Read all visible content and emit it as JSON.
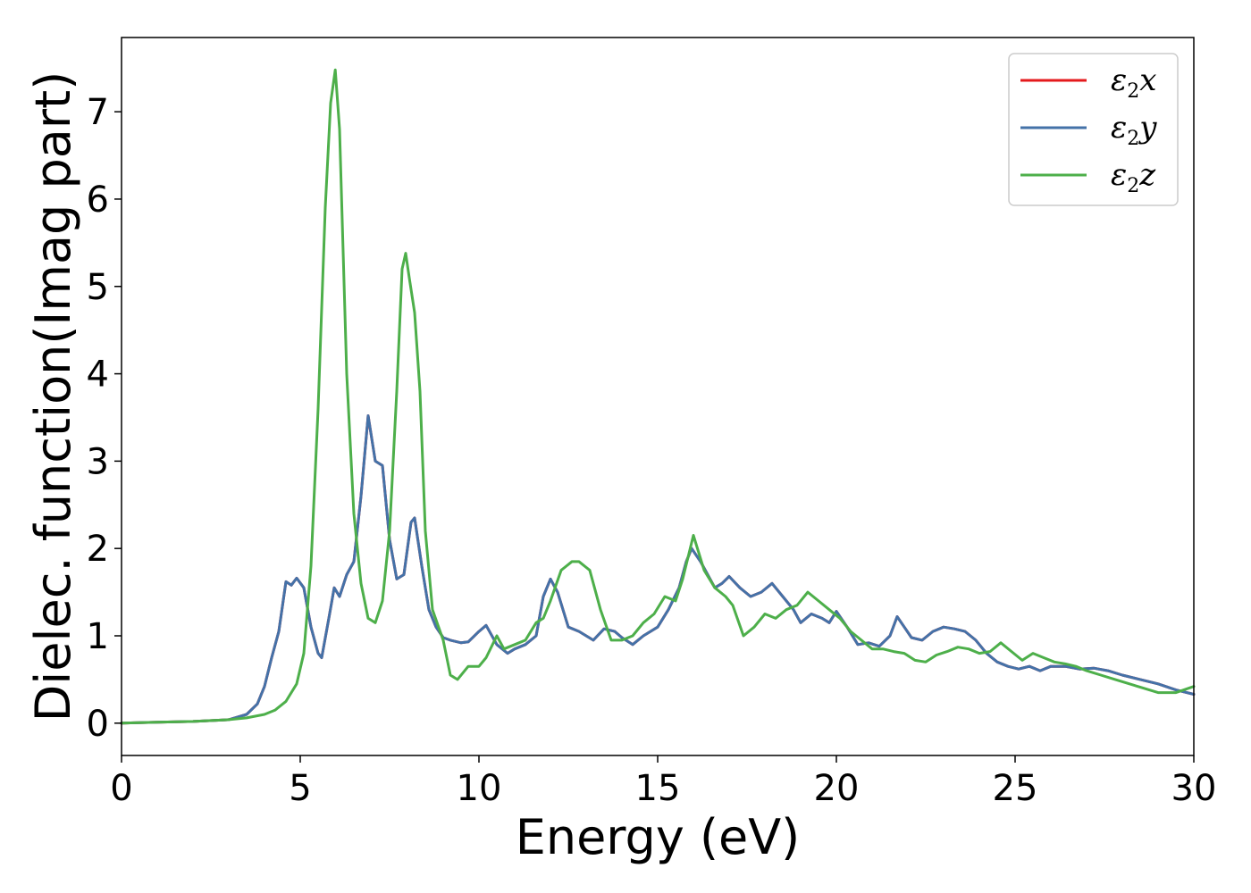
{
  "chart_data": {
    "type": "line",
    "xlabel": "Energy (eV)",
    "ylabel": "Dielec. function(Imag part)",
    "xlim": [
      0,
      30
    ],
    "ylim": [
      -0.37,
      7.85
    ],
    "xticks": [
      0,
      5,
      10,
      15,
      20,
      25,
      30
    ],
    "yticks": [
      0,
      1,
      2,
      3,
      4,
      5,
      6,
      7
    ],
    "grid": false,
    "legend_position": "top-right",
    "series": [
      {
        "name": "ε2x",
        "legend": {
          "base": "ε",
          "sub": "2",
          "suffix": "x"
        },
        "color": "#e41a1c",
        "x": [
          0,
          1,
          2,
          3,
          3.5,
          3.8,
          4.0,
          4.2,
          4.4,
          4.6,
          4.75,
          4.9,
          5.1,
          5.3,
          5.5,
          5.6,
          5.8,
          5.95,
          6.1,
          6.3,
          6.5,
          6.7,
          6.9,
          7.1,
          7.3,
          7.5,
          7.7,
          7.9,
          8.1,
          8.2,
          8.4,
          8.6,
          8.8,
          9.0,
          9.2,
          9.5,
          9.7,
          10.0,
          10.2,
          10.5,
          10.8,
          11.0,
          11.3,
          11.6,
          11.8,
          12.0,
          12.2,
          12.5,
          12.8,
          13.2,
          13.5,
          13.8,
          14.0,
          14.3,
          14.6,
          15.0,
          15.3,
          15.6,
          15.8,
          15.95,
          16.2,
          16.6,
          16.8,
          17.0,
          17.3,
          17.6,
          17.9,
          18.2,
          18.5,
          18.8,
          19.0,
          19.3,
          19.6,
          19.8,
          20.0,
          20.3,
          20.6,
          20.9,
          21.2,
          21.5,
          21.7,
          21.9,
          22.1,
          22.4,
          22.7,
          23.0,
          23.3,
          23.6,
          23.9,
          24.2,
          24.5,
          24.8,
          25.1,
          25.4,
          25.7,
          26.0,
          26.4,
          26.8,
          27.2,
          27.6,
          28.0,
          28.5,
          29.0,
          29.5,
          30.0
        ],
        "y": [
          0.0,
          0.01,
          0.02,
          0.04,
          0.1,
          0.22,
          0.42,
          0.75,
          1.05,
          1.62,
          1.58,
          1.66,
          1.55,
          1.1,
          0.8,
          0.75,
          1.2,
          1.55,
          1.45,
          1.7,
          1.85,
          2.6,
          3.52,
          3.0,
          2.95,
          2.1,
          1.65,
          1.7,
          2.3,
          2.35,
          1.8,
          1.3,
          1.1,
          0.98,
          0.95,
          0.92,
          0.93,
          1.05,
          1.12,
          0.9,
          0.8,
          0.85,
          0.9,
          1.0,
          1.45,
          1.65,
          1.5,
          1.1,
          1.05,
          0.95,
          1.08,
          1.05,
          0.98,
          0.9,
          1.0,
          1.1,
          1.3,
          1.55,
          1.85,
          2.0,
          1.85,
          1.55,
          1.6,
          1.68,
          1.55,
          1.45,
          1.5,
          1.6,
          1.45,
          1.3,
          1.15,
          1.25,
          1.2,
          1.15,
          1.28,
          1.1,
          0.9,
          0.92,
          0.88,
          1.0,
          1.22,
          1.1,
          0.98,
          0.95,
          1.05,
          1.1,
          1.08,
          1.05,
          0.95,
          0.8,
          0.7,
          0.65,
          0.62,
          0.65,
          0.6,
          0.65,
          0.65,
          0.62,
          0.63,
          0.6,
          0.55,
          0.5,
          0.45,
          0.38,
          0.33
        ]
      },
      {
        "name": "ε2y",
        "legend": {
          "base": "ε",
          "sub": "2",
          "suffix": "y"
        },
        "color": "#4472a8",
        "x": [
          0,
          1,
          2,
          3,
          3.5,
          3.8,
          4.0,
          4.2,
          4.4,
          4.6,
          4.75,
          4.9,
          5.1,
          5.3,
          5.5,
          5.6,
          5.8,
          5.95,
          6.1,
          6.3,
          6.5,
          6.7,
          6.9,
          7.1,
          7.3,
          7.5,
          7.7,
          7.9,
          8.1,
          8.2,
          8.4,
          8.6,
          8.8,
          9.0,
          9.2,
          9.5,
          9.7,
          10.0,
          10.2,
          10.5,
          10.8,
          11.0,
          11.3,
          11.6,
          11.8,
          12.0,
          12.2,
          12.5,
          12.8,
          13.2,
          13.5,
          13.8,
          14.0,
          14.3,
          14.6,
          15.0,
          15.3,
          15.6,
          15.8,
          15.95,
          16.2,
          16.6,
          16.8,
          17.0,
          17.3,
          17.6,
          17.9,
          18.2,
          18.5,
          18.8,
          19.0,
          19.3,
          19.6,
          19.8,
          20.0,
          20.3,
          20.6,
          20.9,
          21.2,
          21.5,
          21.7,
          21.9,
          22.1,
          22.4,
          22.7,
          23.0,
          23.3,
          23.6,
          23.9,
          24.2,
          24.5,
          24.8,
          25.1,
          25.4,
          25.7,
          26.0,
          26.4,
          26.8,
          27.2,
          27.6,
          28.0,
          28.5,
          29.0,
          29.5,
          30.0
        ],
        "y": [
          0.0,
          0.01,
          0.02,
          0.04,
          0.1,
          0.22,
          0.42,
          0.75,
          1.05,
          1.62,
          1.58,
          1.66,
          1.55,
          1.1,
          0.8,
          0.75,
          1.2,
          1.55,
          1.45,
          1.7,
          1.85,
          2.6,
          3.52,
          3.0,
          2.95,
          2.1,
          1.65,
          1.7,
          2.3,
          2.35,
          1.8,
          1.3,
          1.1,
          0.98,
          0.95,
          0.92,
          0.93,
          1.05,
          1.12,
          0.9,
          0.8,
          0.85,
          0.9,
          1.0,
          1.45,
          1.65,
          1.5,
          1.1,
          1.05,
          0.95,
          1.08,
          1.05,
          0.98,
          0.9,
          1.0,
          1.1,
          1.3,
          1.55,
          1.85,
          2.0,
          1.85,
          1.55,
          1.6,
          1.68,
          1.55,
          1.45,
          1.5,
          1.6,
          1.45,
          1.3,
          1.15,
          1.25,
          1.2,
          1.15,
          1.28,
          1.1,
          0.9,
          0.92,
          0.88,
          1.0,
          1.22,
          1.1,
          0.98,
          0.95,
          1.05,
          1.1,
          1.08,
          1.05,
          0.95,
          0.8,
          0.7,
          0.65,
          0.62,
          0.65,
          0.6,
          0.65,
          0.65,
          0.62,
          0.63,
          0.6,
          0.55,
          0.5,
          0.45,
          0.38,
          0.33
        ]
      },
      {
        "name": "ε2z",
        "legend": {
          "base": "ε",
          "sub": "2",
          "suffix": "z"
        },
        "color": "#4daf4a",
        "x": [
          0,
          1,
          2,
          3,
          3.5,
          4.0,
          4.3,
          4.6,
          4.9,
          5.1,
          5.3,
          5.5,
          5.7,
          5.85,
          5.98,
          6.1,
          6.3,
          6.5,
          6.7,
          6.9,
          7.1,
          7.3,
          7.5,
          7.7,
          7.85,
          7.95,
          8.05,
          8.2,
          8.35,
          8.5,
          8.7,
          9.0,
          9.2,
          9.4,
          9.7,
          10.0,
          10.2,
          10.5,
          10.7,
          11.0,
          11.3,
          11.6,
          11.8,
          12.0,
          12.3,
          12.6,
          12.8,
          13.1,
          13.4,
          13.7,
          14.0,
          14.3,
          14.6,
          14.9,
          15.2,
          15.5,
          15.7,
          15.85,
          16.0,
          16.3,
          16.6,
          16.9,
          17.1,
          17.4,
          17.7,
          18.0,
          18.3,
          18.6,
          18.9,
          19.2,
          19.5,
          19.8,
          20.1,
          20.4,
          20.7,
          21.0,
          21.3,
          21.6,
          21.9,
          22.2,
          22.5,
          22.8,
          23.1,
          23.4,
          23.7,
          24.0,
          24.3,
          24.6,
          24.9,
          25.2,
          25.5,
          25.8,
          26.1,
          26.4,
          26.7,
          27.0,
          27.4,
          27.8,
          28.2,
          28.6,
          29.0,
          29.5,
          30.0
        ],
        "y": [
          0.0,
          0.01,
          0.02,
          0.04,
          0.06,
          0.1,
          0.15,
          0.25,
          0.45,
          0.8,
          1.8,
          3.6,
          5.9,
          7.1,
          7.48,
          6.8,
          4.0,
          2.4,
          1.6,
          1.2,
          1.15,
          1.4,
          2.2,
          3.8,
          5.2,
          5.38,
          5.1,
          4.7,
          3.8,
          2.2,
          1.3,
          0.95,
          0.55,
          0.5,
          0.65,
          0.65,
          0.75,
          1.0,
          0.85,
          0.9,
          0.95,
          1.15,
          1.2,
          1.4,
          1.75,
          1.85,
          1.85,
          1.75,
          1.3,
          0.95,
          0.95,
          1.0,
          1.15,
          1.25,
          1.45,
          1.4,
          1.65,
          1.9,
          2.15,
          1.75,
          1.55,
          1.45,
          1.35,
          1.0,
          1.1,
          1.25,
          1.2,
          1.3,
          1.35,
          1.5,
          1.4,
          1.3,
          1.2,
          1.05,
          0.95,
          0.85,
          0.85,
          0.82,
          0.8,
          0.72,
          0.7,
          0.78,
          0.82,
          0.87,
          0.85,
          0.8,
          0.82,
          0.92,
          0.82,
          0.72,
          0.8,
          0.75,
          0.7,
          0.68,
          0.65,
          0.6,
          0.55,
          0.5,
          0.45,
          0.4,
          0.35,
          0.35,
          0.42
        ]
      }
    ]
  }
}
